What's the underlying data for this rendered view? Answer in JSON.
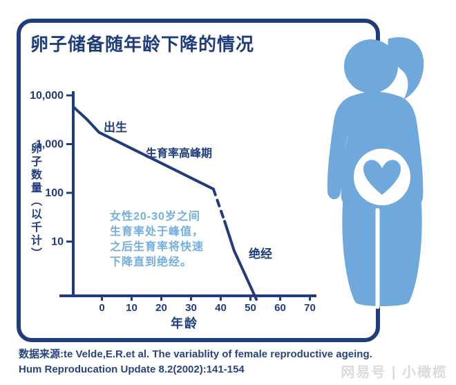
{
  "header": {
    "title": "卵子储备随年龄下降的情况"
  },
  "chart_data": {
    "type": "line",
    "title": "卵子储备随年龄下降的情况",
    "xlabel": "年龄",
    "ylabel": "卵子数量（以千计）",
    "y_scale": "log",
    "grid": false,
    "xlim": [
      -14,
      72
    ],
    "x_ticks": [
      "0",
      "10",
      "20",
      "30",
      "40",
      "50",
      "60",
      "70"
    ],
    "y_ticks": [
      {
        "value": 10000,
        "label": "10,000"
      },
      {
        "value": 1000,
        "label": "1,000"
      },
      {
        "value": 100,
        "label": "100"
      },
      {
        "value": 10,
        "label": "10"
      }
    ],
    "series_note": "egg count (thousands) vs age; dashed = projected rapid decline segment",
    "segments": [
      {
        "style": "solid",
        "points": [
          [
            -9.6,
            5800
          ],
          [
            -5,
            3200
          ],
          [
            -1,
            1750
          ],
          [
            37.5,
            120
          ]
        ]
      },
      {
        "style": "dashed",
        "points": [
          [
            37.5,
            120
          ],
          [
            41.3,
            26
          ]
        ]
      },
      {
        "style": "solid",
        "points": [
          [
            41.3,
            26
          ],
          [
            44.5,
            6.5
          ],
          [
            52,
            0.65
          ]
        ]
      }
    ],
    "annotations": {
      "birth_label": "出生",
      "peak_label": "生育率高峰期",
      "menopause_label": "绝经",
      "note_lines": [
        "女性20-30岁之间",
        "生育率处于峰值，",
        "之后生育率将快速",
        "下降直到绝经。"
      ]
    }
  },
  "source": {
    "line1": "数据来源:te Velde,E.R.et al. The variablity of female reproductive ageing.",
    "line2": "Hum Reproducation Update 8.2(2002):141-154"
  },
  "watermark": "网易号 | 小橄榄",
  "colors": {
    "navy": "#1F3C7C",
    "figure_blue": "#6FA9DC",
    "note_blue": "#74AEDE",
    "background": "#FFFFFF"
  }
}
